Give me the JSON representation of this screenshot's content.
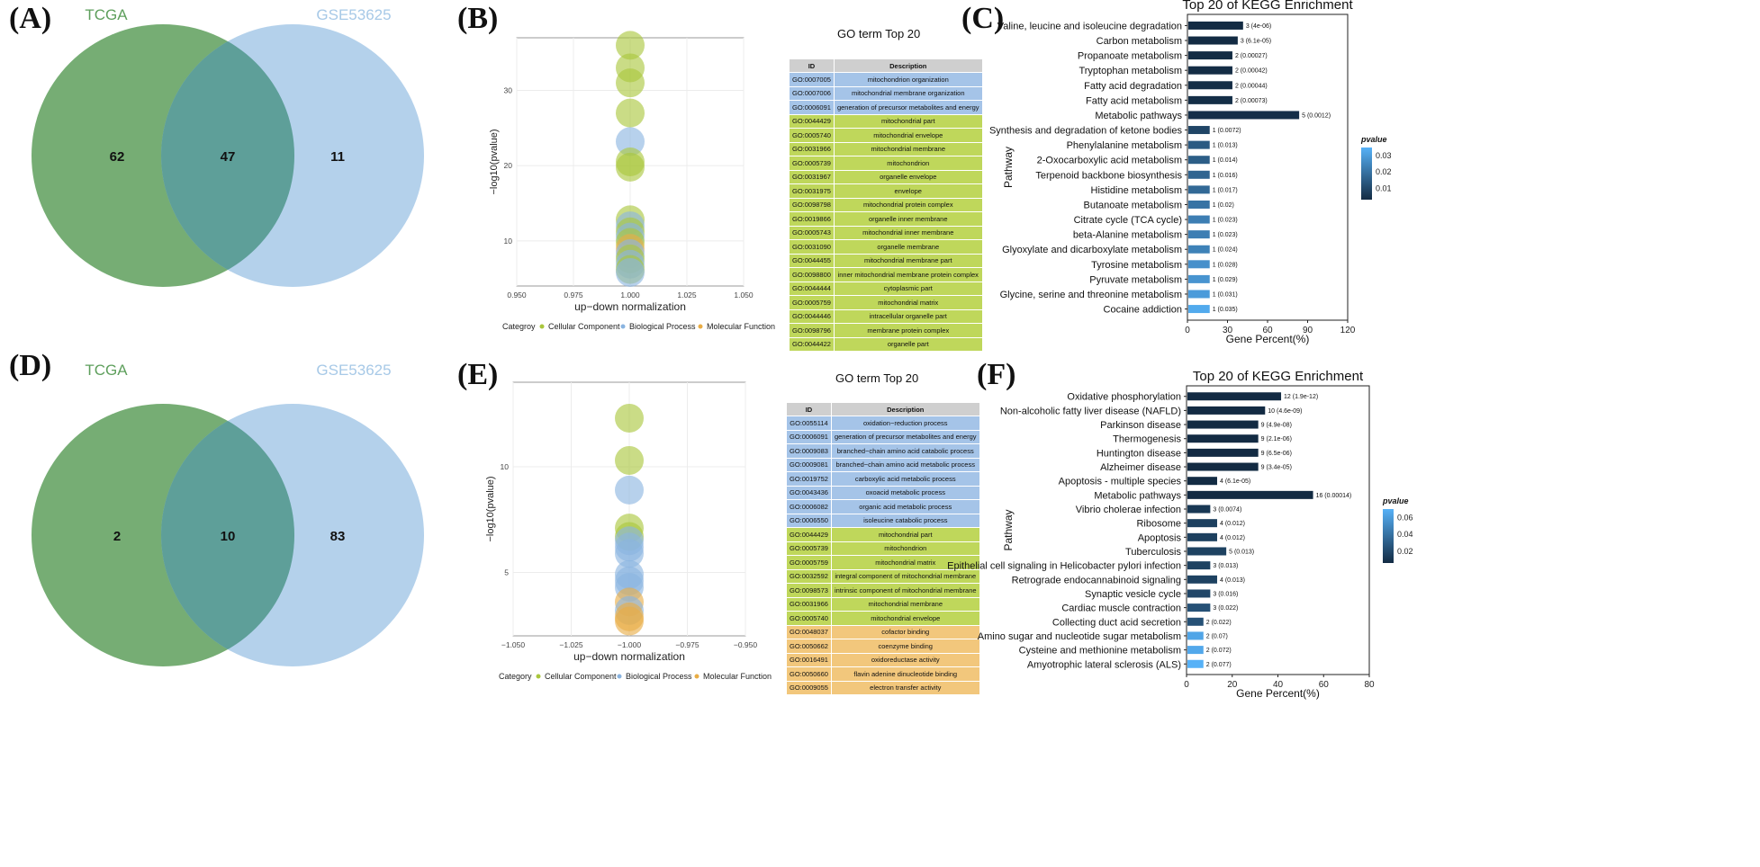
{
  "panels": {
    "A": "(A)",
    "B": "(B)",
    "C": "(C)",
    "D": "(D)",
    "E": "(E)",
    "F": "(F)"
  },
  "colors": {
    "tcga": "#5e9f5c",
    "gse": "#a7c9e7",
    "overlap": "#5e9f99",
    "cc": "#a9c63c",
    "bp": "#8ab4e0",
    "mf": "#e9ad45",
    "table_cc": "#bfd75b",
    "table_bp": "#a5c4e8",
    "table_mf": "#f2c77c",
    "bar_dark": "#132b43",
    "bar_light": "#56b1f7"
  },
  "chart_data": [
    {
      "panel": "A",
      "type": "venn",
      "sets": [
        {
          "name": "TCGA",
          "only": 62
        },
        {
          "name": "GSE53625",
          "only": 11
        }
      ],
      "intersection": 47
    },
    {
      "panel": "B",
      "type": "scatter",
      "title": "GO term Top 20",
      "xlabel": "up−down normalization",
      "ylabel": "−log10(pvalue)",
      "xlim": [
        0.95,
        1.05
      ],
      "ylim": [
        4,
        37
      ],
      "xticks": [
        "0.950",
        "0.975",
        "1.000",
        "1.025",
        "1.050"
      ],
      "yticks": [
        "10",
        "20",
        "30"
      ],
      "legend_title": "Categroy",
      "legend": [
        "Cellular Component",
        "Biological Process",
        "Molecular Function"
      ],
      "points": [
        {
          "x": 1.0,
          "y": 36.0,
          "cat": "CC"
        },
        {
          "x": 1.0,
          "y": 33.0,
          "cat": "CC"
        },
        {
          "x": 1.0,
          "y": 31.0,
          "cat": "CC"
        },
        {
          "x": 1.0,
          "y": 27.0,
          "cat": "CC"
        },
        {
          "x": 1.0,
          "y": 23.2,
          "cat": "BP"
        },
        {
          "x": 1.0,
          "y": 20.5,
          "cat": "CC"
        },
        {
          "x": 1.0,
          "y": 19.8,
          "cat": "CC"
        },
        {
          "x": 1.0,
          "y": 12.8,
          "cat": "CC"
        },
        {
          "x": 1.0,
          "y": 12.0,
          "cat": "BP"
        },
        {
          "x": 1.0,
          "y": 11.2,
          "cat": "CC"
        },
        {
          "x": 1.0,
          "y": 10.5,
          "cat": "BP"
        },
        {
          "x": 1.0,
          "y": 9.8,
          "cat": "CC"
        },
        {
          "x": 1.0,
          "y": 9.0,
          "cat": "MF"
        },
        {
          "x": 1.0,
          "y": 8.3,
          "cat": "BP"
        },
        {
          "x": 1.0,
          "y": 7.6,
          "cat": "CC"
        },
        {
          "x": 1.0,
          "y": 6.9,
          "cat": "BP"
        },
        {
          "x": 1.0,
          "y": 6.2,
          "cat": "CC"
        },
        {
          "x": 1.0,
          "y": 5.8,
          "cat": "BP"
        }
      ],
      "table_headers": [
        "ID",
        "Description"
      ],
      "table_rows": [
        [
          "GO:0007005",
          "mitochondrion organization",
          "BP"
        ],
        [
          "GO:0007006",
          "mitochondrial membrane organization",
          "BP"
        ],
        [
          "GO:0006091",
          "generation of precursor metabolites and energy",
          "BP"
        ],
        [
          "GO:0044429",
          "mitochondrial part",
          "CC"
        ],
        [
          "GO:0005740",
          "mitochondrial envelope",
          "CC"
        ],
        [
          "GO:0031966",
          "mitochondrial membrane",
          "CC"
        ],
        [
          "GO:0005739",
          "mitochondrion",
          "CC"
        ],
        [
          "GO:0031967",
          "organelle envelope",
          "CC"
        ],
        [
          "GO:0031975",
          "envelope",
          "CC"
        ],
        [
          "GO:0098798",
          "mitochondrial protein complex",
          "CC"
        ],
        [
          "GO:0019866",
          "organelle inner membrane",
          "CC"
        ],
        [
          "GO:0005743",
          "mitochondrial inner membrane",
          "CC"
        ],
        [
          "GO:0031090",
          "organelle membrane",
          "CC"
        ],
        [
          "GO:0044455",
          "mitochondrial membrane part",
          "CC"
        ],
        [
          "GO:0098800",
          "inner mitochondrial membrane protein complex",
          "CC"
        ],
        [
          "GO:0044444",
          "cytoplasmic part",
          "CC"
        ],
        [
          "GO:0005759",
          "mitochondrial matrix",
          "CC"
        ],
        [
          "GO:0044446",
          "intracellular organelle part",
          "CC"
        ],
        [
          "GO:0098796",
          "membrane protein complex",
          "CC"
        ],
        [
          "GO:0044422",
          "organelle part",
          "CC"
        ]
      ]
    },
    {
      "panel": "C",
      "type": "bar",
      "title": "Top 20 of KEGG Enrichment",
      "xlabel": "Gene Percent(%)",
      "ylabel": "Pathway",
      "xlim": [
        0,
        120
      ],
      "xticks": [
        "0",
        "30",
        "60",
        "90",
        "120"
      ],
      "legend_title": "pvalue",
      "legend_ticks": [
        "0.03",
        "0.02",
        "0.01"
      ],
      "categories": [
        "Valine, leucine and isoleucine degradation",
        "Carbon metabolism",
        "Propanoate metabolism",
        "Tryptophan metabolism",
        "Fatty acid degradation",
        "Fatty acid metabolism",
        "Metabolic pathways",
        "Synthesis and degradation of ketone bodies",
        "Phenylalanine metabolism",
        "2-Oxocarboxylic acid metabolism",
        "Terpenoid backbone biosynthesis",
        "Histidine metabolism",
        "Butanoate metabolism",
        "Citrate cycle (TCA cycle)",
        "beta-Alanine metabolism",
        "Glyoxylate and dicarboxylate metabolism",
        "Tyrosine metabolism",
        "Pyruvate metabolism",
        "Glycine, serine and threonine metabolism",
        "Cocaine addiction"
      ],
      "values": [
        41,
        37,
        33,
        33,
        33,
        33,
        83,
        16,
        16,
        16,
        16,
        16,
        16,
        16,
        16,
        16,
        16,
        16,
        16,
        16
      ],
      "labels": [
        "3 (4e-06)",
        "3 (6.1e-05)",
        "2 (0.00027)",
        "2 (0.00042)",
        "2 (0.00044)",
        "2 (0.00073)",
        "5 (0.0012)",
        "1 (0.0072)",
        "1 (0.013)",
        "1 (0.014)",
        "1 (0.016)",
        "1 (0.017)",
        "1 (0.02)",
        "1 (0.023)",
        "1 (0.023)",
        "1 (0.024)",
        "1 (0.028)",
        "1 (0.029)",
        "1 (0.031)",
        "1 (0.035)"
      ],
      "pvalues": [
        4e-06,
        6.1e-05,
        0.00027,
        0.00042,
        0.00044,
        0.00073,
        0.0012,
        0.0072,
        0.013,
        0.014,
        0.016,
        0.017,
        0.02,
        0.023,
        0.023,
        0.024,
        0.028,
        0.029,
        0.031,
        0.035
      ],
      "pmax": 0.037
    },
    {
      "panel": "D",
      "type": "venn",
      "sets": [
        {
          "name": "TCGA",
          "only": 2
        },
        {
          "name": "GSE53625",
          "only": 83
        }
      ],
      "intersection": 10
    },
    {
      "panel": "E",
      "type": "scatter",
      "title": "GO term Top 20",
      "xlabel": "up−down normalization",
      "ylabel": "−log10(pvalue)",
      "xlim": [
        -1.05,
        -0.95
      ],
      "ylim": [
        2.0,
        14.0
      ],
      "xticks": [
        "−1.050",
        "−1.025",
        "−1.000",
        "−0.975",
        "−0.950"
      ],
      "yticks": [
        "5",
        "10"
      ],
      "legend_title": "Category",
      "legend": [
        "Cellular Component",
        "Biological Process",
        "Molecular Function"
      ],
      "points": [
        {
          "x": -1.0,
          "y": 12.3,
          "cat": "CC"
        },
        {
          "x": -1.0,
          "y": 10.3,
          "cat": "CC"
        },
        {
          "x": -1.0,
          "y": 8.9,
          "cat": "BP"
        },
        {
          "x": -1.0,
          "y": 7.1,
          "cat": "CC"
        },
        {
          "x": -1.0,
          "y": 6.7,
          "cat": "CC"
        },
        {
          "x": -1.0,
          "y": 6.5,
          "cat": "BP"
        },
        {
          "x": -1.0,
          "y": 6.2,
          "cat": "BP"
        },
        {
          "x": -1.0,
          "y": 5.9,
          "cat": "BP"
        },
        {
          "x": -1.0,
          "y": 4.9,
          "cat": "BP"
        },
        {
          "x": -1.0,
          "y": 4.6,
          "cat": "BP"
        },
        {
          "x": -1.0,
          "y": 4.3,
          "cat": "BP"
        },
        {
          "x": -1.0,
          "y": 3.6,
          "cat": "MF"
        },
        {
          "x": -1.0,
          "y": 3.2,
          "cat": "BP"
        },
        {
          "x": -1.0,
          "y": 2.9,
          "cat": "MF"
        },
        {
          "x": -1.0,
          "y": 2.7,
          "cat": "MF"
        }
      ],
      "table_headers": [
        "ID",
        "Description"
      ],
      "table_rows": [
        [
          "GO:0055114",
          "oxidation−reduction process",
          "BP"
        ],
        [
          "GO:0006091",
          "generation of precursor metabolites and energy",
          "BP"
        ],
        [
          "GO:0009083",
          "branched−chain amino acid catabolic process",
          "BP"
        ],
        [
          "GO:0009081",
          "branched−chain amino acid metabolic process",
          "BP"
        ],
        [
          "GO:0019752",
          "carboxylic acid metabolic process",
          "BP"
        ],
        [
          "GO:0043436",
          "oxoacid metabolic process",
          "BP"
        ],
        [
          "GO:0006082",
          "organic acid metabolic process",
          "BP"
        ],
        [
          "GO:0006550",
          "isoleucine catabolic process",
          "BP"
        ],
        [
          "GO:0044429",
          "mitochondrial part",
          "CC"
        ],
        [
          "GO:0005739",
          "mitochondrion",
          "CC"
        ],
        [
          "GO:0005759",
          "mitochondrial matrix",
          "CC"
        ],
        [
          "GO:0032592",
          "integral component of mitochondrial membrane",
          "CC"
        ],
        [
          "GO:0098573",
          "intrinsic component of mitochondrial membrane",
          "CC"
        ],
        [
          "GO:0031966",
          "mitochondrial membrane",
          "CC"
        ],
        [
          "GO:0005740",
          "mitochondrial envelope",
          "CC"
        ],
        [
          "GO:0048037",
          "cofactor binding",
          "MF"
        ],
        [
          "GO:0050662",
          "coenzyme binding",
          "MF"
        ],
        [
          "GO:0016491",
          "oxidoreductase activity",
          "MF"
        ],
        [
          "GO:0050660",
          "flavin adenine dinucleotide binding",
          "MF"
        ],
        [
          "GO:0009055",
          "electron transfer activity",
          "MF"
        ]
      ]
    },
    {
      "panel": "F",
      "type": "bar",
      "title": "Top 20 of KEGG Enrichment",
      "xlabel": "Gene Percent(%)",
      "ylabel": "Pathway",
      "xlim": [
        0,
        80
      ],
      "xticks": [
        "0",
        "20",
        "40",
        "60",
        "80"
      ],
      "legend_title": "pvalue",
      "legend_ticks": [
        "0.06",
        "0.04",
        "0.02"
      ],
      "categories": [
        "Oxidative phosphorylation",
        "Non-alcoholic fatty liver disease (NAFLD)",
        "Parkinson disease",
        "Thermogenesis",
        "Huntington disease",
        "Alzheimer disease",
        "Apoptosis - multiple species",
        "Metabolic pathways",
        "Vibrio cholerae infection",
        "Ribosome",
        "Apoptosis",
        "Tuberculosis",
        "Epithelial cell signaling in Helicobacter pylori infection",
        "Retrograde endocannabinoid signaling",
        "Synaptic vesicle cycle",
        "Cardiac muscle contraction",
        "Collecting duct acid secretion",
        "Amino sugar and nucleotide sugar metabolism",
        "Cysteine and methionine metabolism",
        "Amyotrophic lateral sclerosis (ALS)"
      ],
      "values": [
        41,
        34,
        31,
        31,
        31,
        31,
        13,
        55,
        10,
        13,
        13,
        17,
        10,
        13,
        10,
        10,
        7,
        7,
        7,
        7
      ],
      "labels": [
        "12 (1.9e-12)",
        "10 (4.6e-09)",
        "9 (4.9e-08)",
        "9 (2.1e-06)",
        "9 (6.5e-06)",
        "9 (3.4e-05)",
        "4 (6.1e-05)",
        "16 (0.00014)",
        "3 (0.0074)",
        "4 (0.012)",
        "4 (0.012)",
        "5 (0.013)",
        "3 (0.013)",
        "4 (0.013)",
        "3 (0.016)",
        "3 (0.022)",
        "2 (0.022)",
        "2 (0.07)",
        "2 (0.072)",
        "2 (0.077)"
      ],
      "pvalues": [
        1.9e-12,
        4.6e-09,
        4.9e-08,
        2.1e-06,
        6.5e-06,
        3.4e-05,
        6.1e-05,
        0.00014,
        0.0074,
        0.012,
        0.012,
        0.013,
        0.013,
        0.013,
        0.016,
        0.022,
        0.022,
        0.07,
        0.072,
        0.077
      ],
      "pmax": 0.077
    }
  ]
}
